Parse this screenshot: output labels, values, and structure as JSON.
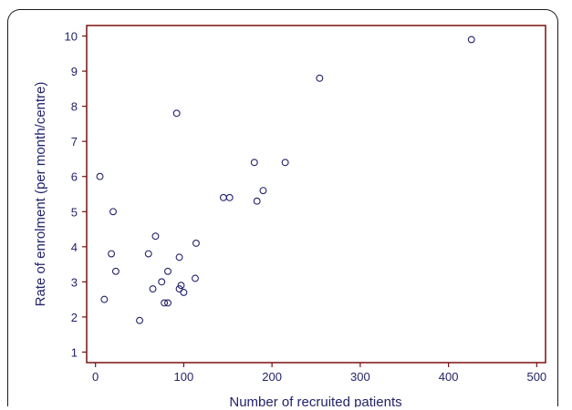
{
  "chart_data": {
    "type": "scatter",
    "title": "",
    "xlabel": "Number of recruited patients",
    "ylabel": "Rate of enrolment (per month/centre)",
    "xlim": [
      -10,
      510
    ],
    "ylim": [
      0.7,
      10.3
    ],
    "x_ticks": [
      0,
      100,
      200,
      300,
      400,
      500
    ],
    "y_ticks": [
      1,
      2,
      3,
      4,
      5,
      6,
      7,
      8,
      9,
      10
    ],
    "x_tick_labels": [
      "0",
      "100",
      "200",
      "300",
      "400",
      "500"
    ],
    "y_tick_labels": [
      "1",
      "2",
      "3",
      "4",
      "5",
      "6",
      "7",
      "8",
      "9",
      "10"
    ],
    "grid": false,
    "legend": "none",
    "colors": {
      "frame": "#7a1010",
      "marker": "#23236b",
      "text": "#23236b"
    },
    "points": [
      {
        "x": 5,
        "y": 6.0
      },
      {
        "x": 10,
        "y": 2.5
      },
      {
        "x": 18,
        "y": 3.8
      },
      {
        "x": 20,
        "y": 5.0
      },
      {
        "x": 23,
        "y": 3.3
      },
      {
        "x": 50,
        "y": 1.9
      },
      {
        "x": 60,
        "y": 3.8
      },
      {
        "x": 65,
        "y": 2.8
      },
      {
        "x": 68,
        "y": 4.3
      },
      {
        "x": 75,
        "y": 3.0
      },
      {
        "x": 78,
        "y": 2.4
      },
      {
        "x": 82,
        "y": 2.4
      },
      {
        "x": 82,
        "y": 3.3
      },
      {
        "x": 92,
        "y": 7.8
      },
      {
        "x": 95,
        "y": 2.8
      },
      {
        "x": 95,
        "y": 3.7
      },
      {
        "x": 97,
        "y": 2.9
      },
      {
        "x": 100,
        "y": 2.7
      },
      {
        "x": 113,
        "y": 3.1
      },
      {
        "x": 114,
        "y": 4.1
      },
      {
        "x": 145,
        "y": 5.4
      },
      {
        "x": 152,
        "y": 5.4
      },
      {
        "x": 180,
        "y": 6.4
      },
      {
        "x": 183,
        "y": 5.3
      },
      {
        "x": 190,
        "y": 5.6
      },
      {
        "x": 215,
        "y": 6.4
      },
      {
        "x": 254,
        "y": 8.8
      },
      {
        "x": 426,
        "y": 9.9
      }
    ]
  }
}
